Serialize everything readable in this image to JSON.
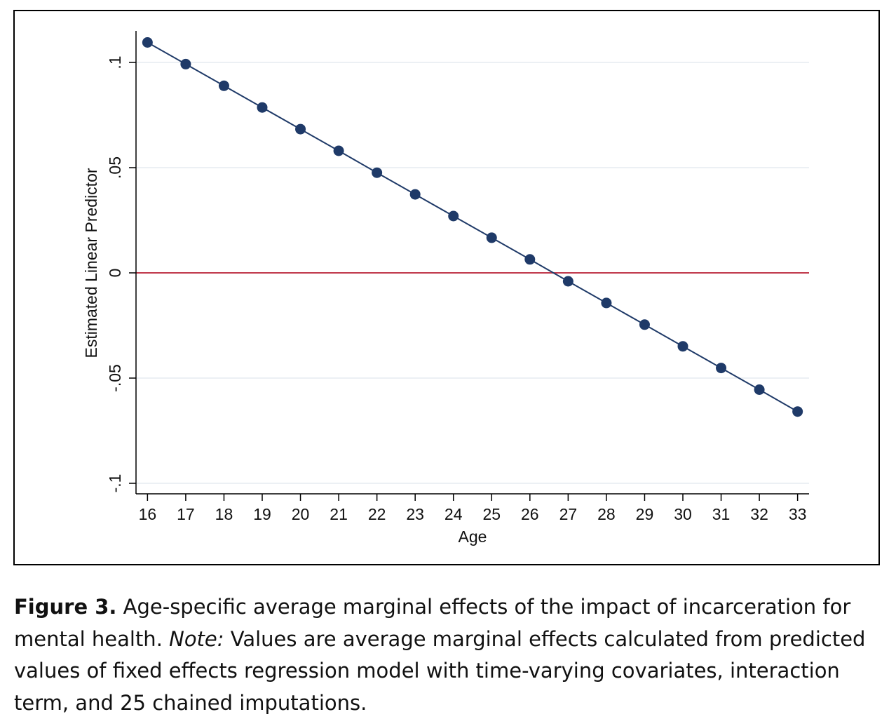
{
  "chart_data": {
    "type": "line",
    "title": "",
    "xlabel": "Age",
    "ylabel": "Estimated Linear Predictor",
    "x": [
      16,
      17,
      18,
      19,
      20,
      21,
      22,
      23,
      24,
      25,
      26,
      27,
      28,
      29,
      30,
      31,
      32,
      33
    ],
    "series": [
      {
        "values": [
          0.1095,
          0.0992,
          0.0889,
          0.0786,
          0.0683,
          0.058,
          0.0476,
          0.0373,
          0.027,
          0.0167,
          0.0064,
          -0.004,
          -0.0143,
          -0.0246,
          -0.0349,
          -0.0452,
          -0.0555,
          -0.0659
        ],
        "color": "#1f3a68"
      }
    ],
    "reference_line": {
      "y": 0,
      "color": "#c0394b"
    },
    "xticks": [
      "16",
      "17",
      "18",
      "19",
      "20",
      "21",
      "22",
      "23",
      "24",
      "25",
      "26",
      "27",
      "28",
      "29",
      "30",
      "31",
      "32",
      "33"
    ],
    "yticks": [
      {
        "value": 0.1,
        "label": ".1"
      },
      {
        "value": 0.05,
        "label": ".05"
      },
      {
        "value": 0,
        "label": "0"
      },
      {
        "value": -0.05,
        "label": "-.05"
      },
      {
        "value": -0.1,
        "label": "-.1"
      }
    ],
    "xlim": [
      15.7,
      33.3
    ],
    "ylim": [
      -0.105,
      0.115
    ],
    "grid": true
  },
  "caption": {
    "label": "Figure 3.",
    "text1": " Age-specific average marginal effects of the impact of incarceration for mental health. ",
    "note_label": "Note:",
    "text2": " Values are average marginal effects calculated from predicted values of fixed effects regression model with time-varying covariates, interaction term, and 25 chained imputations."
  }
}
